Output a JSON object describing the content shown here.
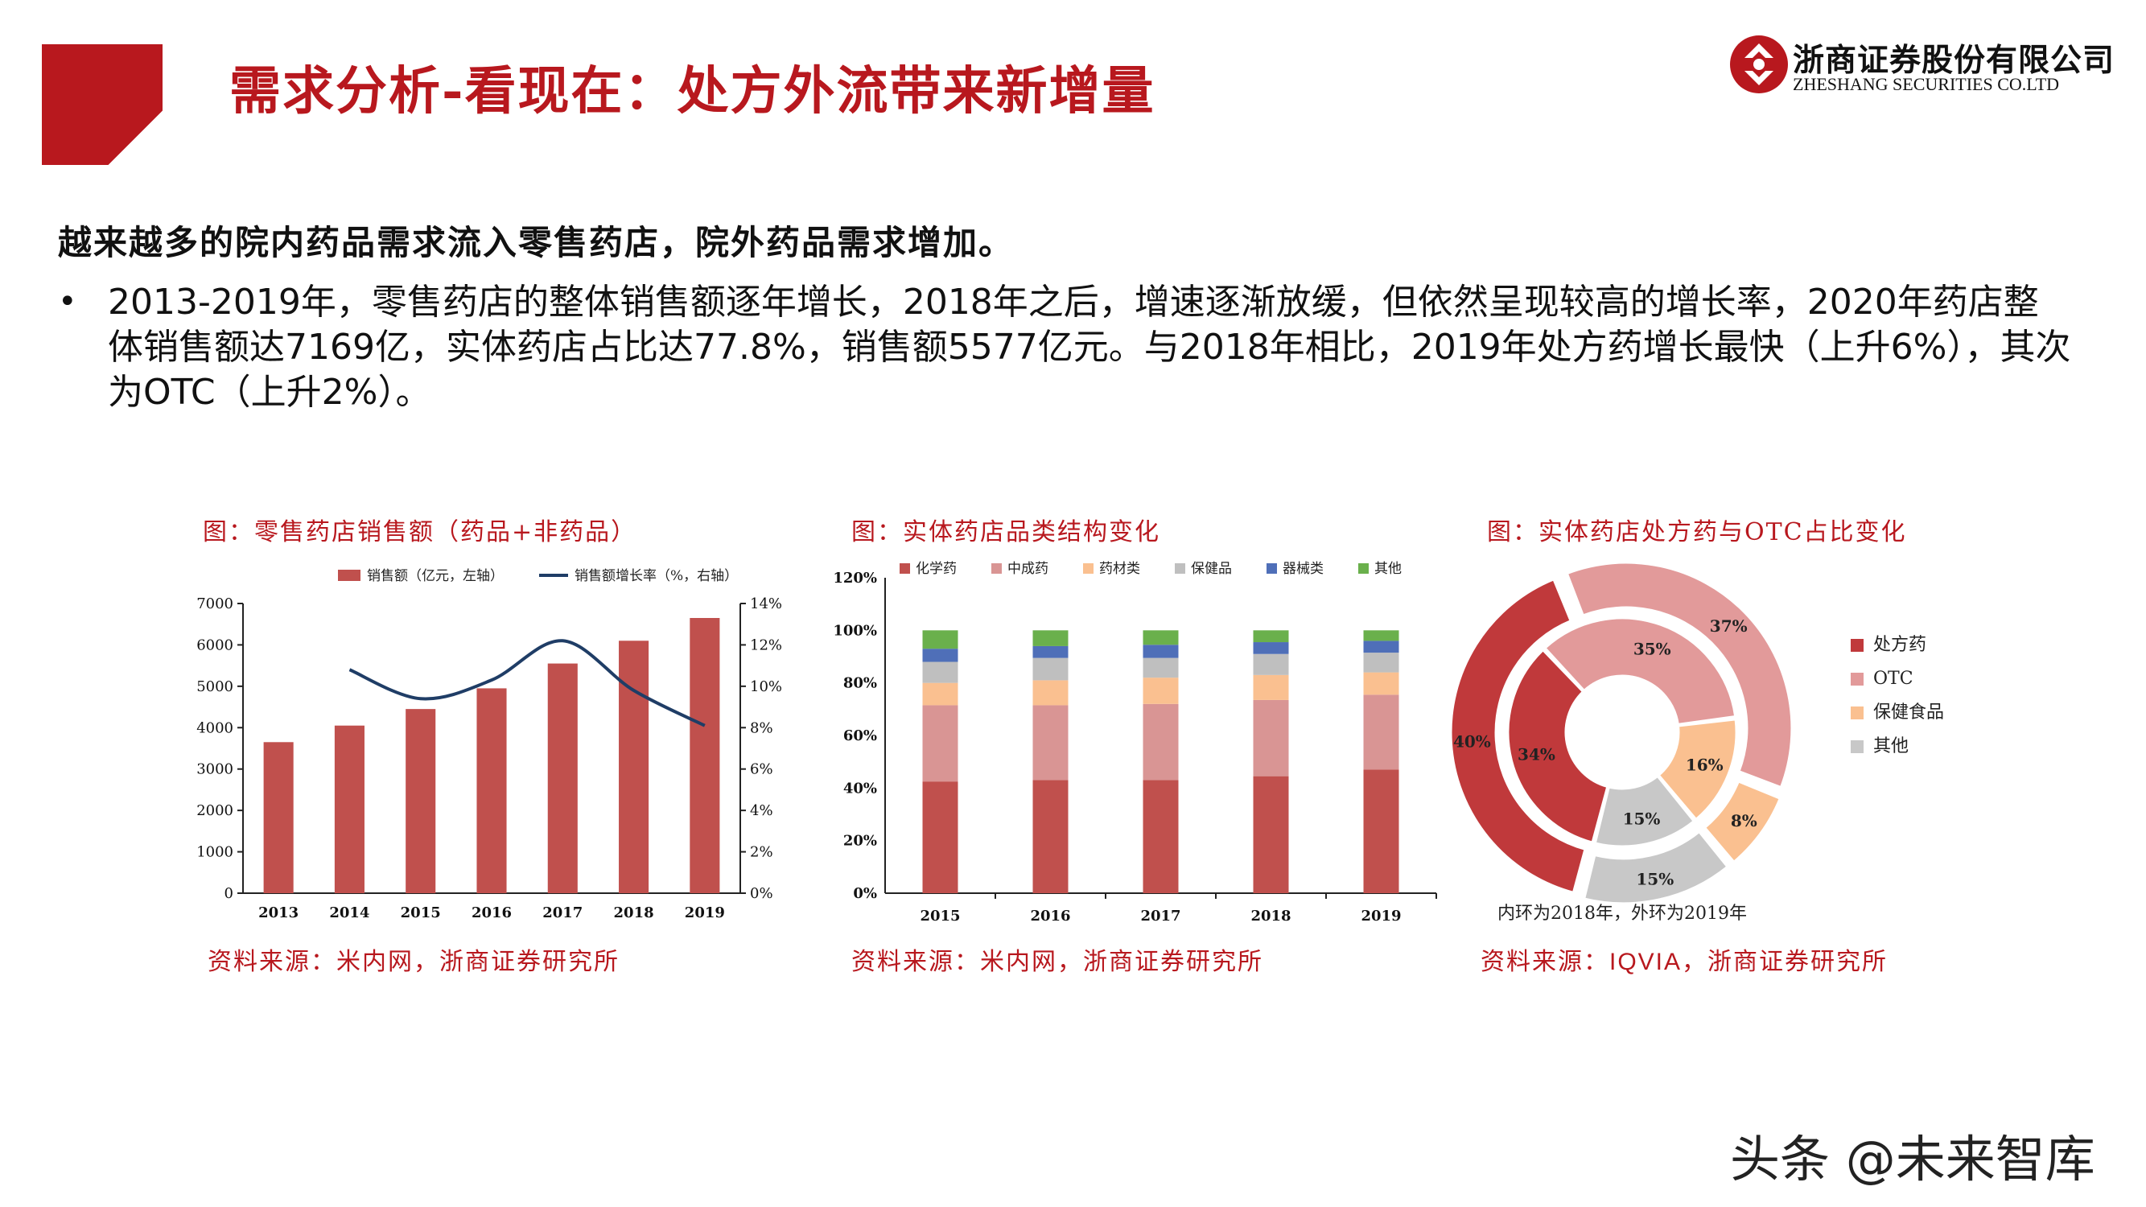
{
  "header": {
    "title": "需求分析-看现在：处方外流带来新增量",
    "logo_cn": "浙商证券股份有限公司",
    "logo_en": "ZHESHANG SECURITIES CO.LTD"
  },
  "lead": "越来越多的院内药品需求流入零售药店，院外药品需求增加。",
  "bullet": "2013-2019年，零售药店的整体销售额逐年增长，2018年之后，增速逐渐放缓，但依然呈现较高的增长率，2020年药店整体销售额达7169亿，实体药店占比达77.8%，销售额5577亿元。与2018年相比，2019年处方药增长最快（上升6%），其次为OTC（上升2%）。",
  "colors": {
    "accent": "#b8181e",
    "bar": "#c0504d",
    "line": "#1f3d66"
  },
  "chart_data": [
    {
      "type": "bar",
      "title": "图：零售药店销售额（药品+非药品）",
      "source": "资料来源：米内网，浙商证券研究所",
      "categories": [
        "2013",
        "2014",
        "2015",
        "2016",
        "2017",
        "2018",
        "2019"
      ],
      "series": [
        {
          "name": "销售额（亿元，左轴）",
          "type": "bar",
          "axis": "left",
          "values": [
            3650,
            4050,
            4450,
            4950,
            5550,
            6100,
            6650
          ]
        },
        {
          "name": "销售额增长率（%，右轴）",
          "type": "line",
          "axis": "right",
          "values": [
            null,
            10.8,
            9.4,
            10.3,
            12.2,
            9.8,
            8.1
          ]
        }
      ],
      "y_ticks": [
        "0",
        "1000",
        "2000",
        "3000",
        "4000",
        "5000",
        "6000",
        "7000"
      ],
      "y2_ticks": [
        "0%",
        "2%",
        "4%",
        "6%",
        "8%",
        "10%",
        "12%",
        "14%"
      ],
      "ylim": [
        0,
        7000
      ],
      "y2lim": [
        0,
        14
      ],
      "legend": "top"
    },
    {
      "type": "bar",
      "stacked": true,
      "title": "图：实体药店品类结构变化",
      "source": "资料来源：米内网，浙商证券研究所",
      "categories": [
        "2015",
        "2016",
        "2017",
        "2018",
        "2019"
      ],
      "series": [
        {
          "name": "化学药",
          "color": "#c0504d",
          "values": [
            42.5,
            43,
            43,
            44.5,
            47
          ]
        },
        {
          "name": "中成药",
          "color": "#d99594",
          "values": [
            29,
            28.5,
            29,
            29,
            28.5
          ]
        },
        {
          "name": "药材类",
          "color": "#fac090",
          "values": [
            8.5,
            9.5,
            10,
            9.5,
            8.5
          ]
        },
        {
          "name": "保健品",
          "color": "#bfbfbf",
          "values": [
            8,
            8.5,
            7.5,
            8,
            7.5
          ]
        },
        {
          "name": "器械类",
          "color": "#4f6fb8",
          "values": [
            5,
            4.5,
            5,
            4.5,
            4.5
          ]
        },
        {
          "name": "其他",
          "color": "#6ab04c",
          "values": [
            7,
            6,
            5.5,
            4.5,
            4
          ]
        }
      ],
      "y_ticks": [
        "0%",
        "20%",
        "40%",
        "60%",
        "80%",
        "100%",
        "120%"
      ],
      "ylim": [
        0,
        120
      ],
      "legend": "top"
    },
    {
      "type": "pie",
      "donut": true,
      "title": "图：实体药店处方药与OTC占比变化",
      "note": "内环为2018年，外环为2019年",
      "source_prefix": "资料来源：",
      "source_highlight": "IQVIA",
      "source_suffix": "，浙商证券研究所",
      "categories": [
        "处方药",
        "OTC",
        "保健食品",
        "其他"
      ],
      "colors": [
        "#c0393b",
        "#e29a9a",
        "#fac090",
        "#c8c8c8"
      ],
      "series": [
        {
          "name": "内环 2018年",
          "values": [
            34,
            35,
            16,
            15
          ],
          "labels": [
            "34%",
            "35%",
            "16%",
            "15%"
          ]
        },
        {
          "name": "外环 2019年",
          "values": [
            40,
            37,
            8,
            15
          ],
          "labels": [
            "40%",
            "37%",
            "8%",
            "15%"
          ]
        }
      ],
      "legend": "right"
    }
  ],
  "watermark": "头条 @未来智库"
}
